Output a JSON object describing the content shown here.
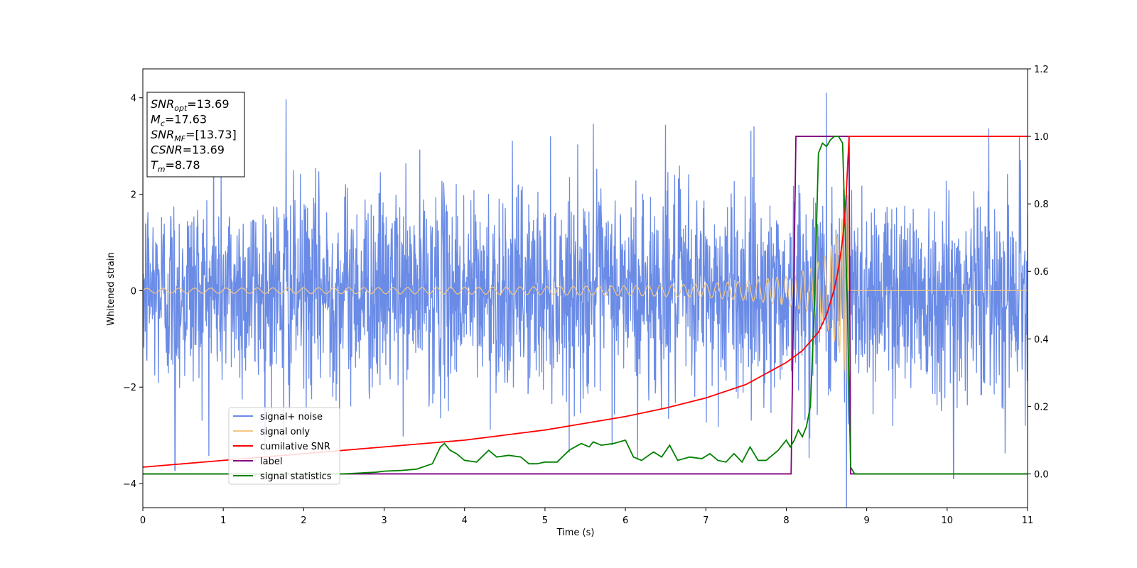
{
  "chart_data": {
    "type": "line",
    "title": "",
    "xlabel": "Time (s)",
    "ylabel": "Whitened strain",
    "y2label": "",
    "xlim": [
      0,
      11
    ],
    "ylim": [
      -4.5,
      4.6
    ],
    "y2lim": [
      -0.1,
      1.2
    ],
    "xticks": [
      0,
      1,
      2,
      3,
      4,
      5,
      6,
      7,
      8,
      9,
      10,
      11
    ],
    "yticks": [
      -4,
      -2,
      0,
      2,
      4
    ],
    "y2ticks": [
      0.0,
      0.2,
      0.4,
      0.6,
      0.8,
      1.0,
      1.2
    ],
    "grid": false,
    "legend_position": "lower-left",
    "merger_time": 8.78,
    "annotation": {
      "lines": [
        {
          "base": "SNR",
          "sub": "opt",
          "rest": "=13.69"
        },
        {
          "base": "M",
          "sub": "c",
          "rest": "=17.63"
        },
        {
          "base": "SNR",
          "sub": "MF",
          "rest": "=[13.73]"
        },
        {
          "base": "CSNR",
          "sub": "",
          "rest": "=13.69"
        },
        {
          "base": "T",
          "sub": "m",
          "rest": "=8.78"
        }
      ]
    },
    "series": [
      {
        "name": "signal+ noise",
        "axis": "left",
        "color": "#6a8be6",
        "description": "whitened noise, std ~1, peaks to ~4.2 near t=8.5",
        "noise_std": 1.0,
        "spikes": [
          [
            1.78,
            3.98
          ],
          [
            0.4,
            -3.7
          ],
          [
            0.88,
            3.6
          ],
          [
            1.75,
            -3.3
          ],
          [
            5.6,
            3.45
          ],
          [
            6.5,
            3.4
          ],
          [
            8.5,
            4.18
          ],
          [
            8.75,
            -4.1
          ],
          [
            10.08,
            -3.9
          ],
          [
            10.9,
            3.2
          ],
          [
            7.6,
            3.3
          ],
          [
            6.15,
            -3.45
          ]
        ]
      },
      {
        "name": "signal only",
        "axis": "left",
        "color": "#f5c77e",
        "description": "chirp with envelope rising to ~2.0 at merger t=8.78, zero after",
        "envelope": {
          "x": [
            0,
            4,
            6,
            7,
            7.5,
            8.0,
            8.3,
            8.5,
            8.65,
            8.75,
            8.78
          ],
          "y": [
            0.05,
            0.07,
            0.1,
            0.14,
            0.2,
            0.3,
            0.45,
            0.75,
            1.2,
            1.9,
            2.0
          ]
        }
      },
      {
        "name": "cumilative SNR",
        "axis": "right",
        "color": "#ff0000",
        "x": [
          0,
          1,
          2,
          3,
          4,
          5,
          6,
          6.5,
          7,
          7.5,
          8.0,
          8.2,
          8.4,
          8.5,
          8.6,
          8.65,
          8.7,
          8.74,
          8.78,
          8.8,
          11
        ],
        "y": [
          0.02,
          0.04,
          0.06,
          0.08,
          0.1,
          0.13,
          0.17,
          0.195,
          0.225,
          0.265,
          0.33,
          0.365,
          0.42,
          0.47,
          0.55,
          0.61,
          0.69,
          0.8,
          1.0,
          1.0,
          1.0
        ]
      },
      {
        "name": "label",
        "axis": "right",
        "color": "#800080",
        "x": [
          0,
          8.06,
          8.12,
          8.78,
          8.8,
          11
        ],
        "y": [
          0,
          0,
          1,
          1,
          0,
          0
        ]
      },
      {
        "name": "signal statistics",
        "axis": "right",
        "color": "#008000",
        "x": [
          0,
          2.5,
          2.9,
          3.0,
          3.2,
          3.4,
          3.6,
          3.7,
          3.75,
          3.82,
          3.9,
          4.0,
          4.15,
          4.3,
          4.4,
          4.55,
          4.7,
          4.8,
          4.9,
          5.0,
          5.15,
          5.3,
          5.45,
          5.55,
          5.6,
          5.7,
          5.85,
          6.0,
          6.1,
          6.2,
          6.35,
          6.45,
          6.55,
          6.65,
          6.8,
          6.95,
          7.05,
          7.15,
          7.25,
          7.35,
          7.45,
          7.55,
          7.65,
          7.75,
          7.9,
          8.0,
          8.05,
          8.1,
          8.15,
          8.2,
          8.25,
          8.3,
          8.35,
          8.4,
          8.45,
          8.5,
          8.55,
          8.6,
          8.65,
          8.7,
          8.76,
          8.8,
          8.85,
          11
        ],
        "y": [
          0,
          0,
          0.005,
          0.008,
          0.01,
          0.014,
          0.03,
          0.08,
          0.09,
          0.07,
          0.06,
          0.04,
          0.035,
          0.07,
          0.05,
          0.055,
          0.05,
          0.03,
          0.03,
          0.035,
          0.035,
          0.07,
          0.09,
          0.08,
          0.095,
          0.085,
          0.09,
          0.1,
          0.05,
          0.04,
          0.065,
          0.05,
          0.085,
          0.04,
          0.05,
          0.045,
          0.06,
          0.04,
          0.035,
          0.06,
          0.035,
          0.08,
          0.04,
          0.04,
          0.07,
          0.1,
          0.08,
          0.1,
          0.13,
          0.11,
          0.14,
          0.2,
          0.5,
          0.95,
          0.98,
          0.97,
          0.99,
          1.0,
          1.0,
          0.98,
          0.5,
          0.02,
          0.0,
          0.0
        ]
      }
    ]
  }
}
